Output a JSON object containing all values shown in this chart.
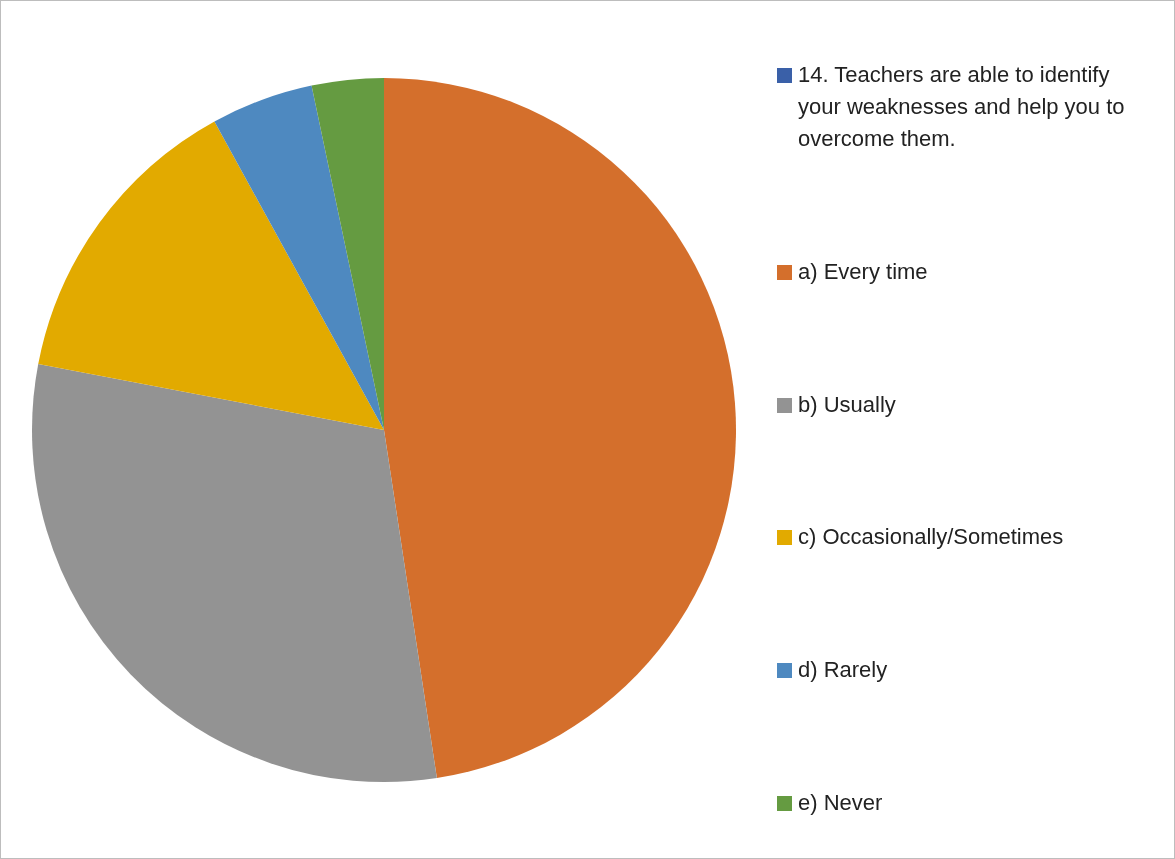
{
  "chart_data": {
    "type": "pie",
    "categories": [
      "14. Teachers are able to identify your weaknesses and help you to overcome them.",
      "a) Every time",
      "b) Usually",
      "c)  Occasionally/Sometimes",
      "d)  Rarely",
      "e)  Never"
    ],
    "values": [
      0,
      47.6,
      30.4,
      14.0,
      4.7,
      3.3
    ],
    "colors": [
      "#3a60a8",
      "#d46f2c",
      "#939393",
      "#e2aa00",
      "#4e89c0",
      "#659b41"
    ],
    "legend": "right"
  }
}
